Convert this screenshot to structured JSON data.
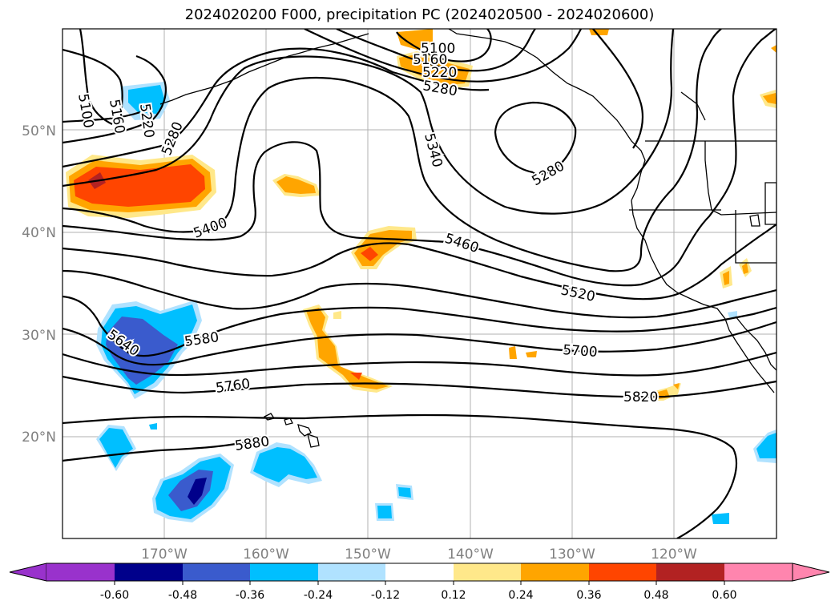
{
  "title": "2024020200 F000, precipitation PC (2024020500 - 2024020600)",
  "lat_labels": [
    "50°N",
    "40°N",
    "30°N",
    "20°N"
  ],
  "lon_labels": [
    "170°W",
    "160°W",
    "150°W",
    "140°W",
    "130°W",
    "120°W"
  ],
  "contour_labels": [
    "5100",
    "5160",
    "5220",
    "5280",
    "5100",
    "5160",
    "5220",
    "5280",
    "5340",
    "5280",
    "5400",
    "5460",
    "5520",
    "5580",
    "5640",
    "5700",
    "5760",
    "5820",
    "5880"
  ],
  "colorbar": {
    "ticks": [
      "-0.60",
      "-0.48",
      "-0.36",
      "-0.24",
      "-0.12",
      "0.12",
      "0.24",
      "0.36",
      "0.48",
      "0.60"
    ],
    "colors": [
      "#9932cc",
      "#00008b",
      "#3a5bcd",
      "#00bfff",
      "#b0e2ff",
      "#ffffff",
      "#ffe88a",
      "#ffa500",
      "#ff4500",
      "#b22222",
      "#ff85ae"
    ]
  },
  "colors": {
    "neg_light": "#b0e2ff",
    "neg_mid": "#00bfff",
    "neg_strong": "#3a5bcd",
    "neg_max": "#00008b",
    "pos_light": "#ffe88a",
    "pos_mid": "#ffa500",
    "pos_strong": "#ff4500",
    "pos_max": "#b22222"
  }
}
